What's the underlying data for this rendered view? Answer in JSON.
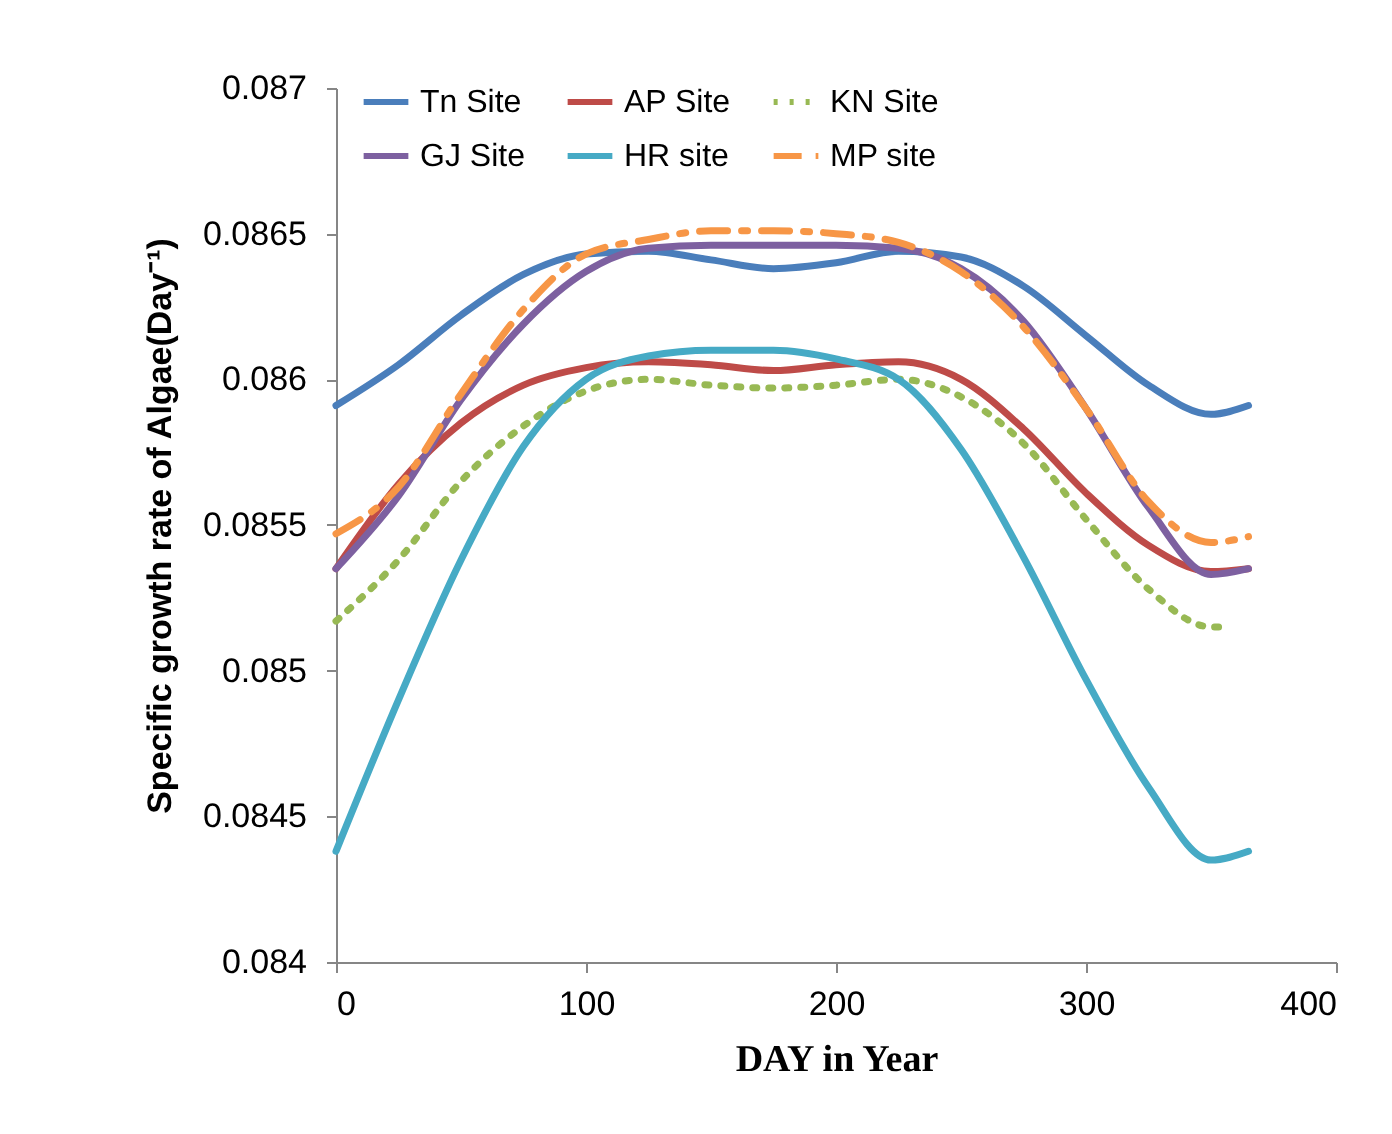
{
  "chart_data": {
    "type": "line",
    "xlabel": "DAY  in Year",
    "ylabel": "Specific growth rate of Algae(Day⁻¹)",
    "x": [
      0,
      25,
      50,
      75,
      100,
      125,
      150,
      175,
      200,
      225,
      250,
      275,
      300,
      325,
      350,
      365
    ],
    "xlim": [
      0,
      400
    ],
    "xticks": [
      0,
      100,
      200,
      300,
      400
    ],
    "ylim": [
      0.084,
      0.087
    ],
    "yticks": [
      0.084,
      0.0845,
      0.085,
      0.0855,
      0.086,
      0.0865,
      0.087
    ],
    "legend": "top",
    "grid": false,
    "marker": "none",
    "series": [
      {
        "name": "Tn Site",
        "color": "#4a7ebb",
        "line_style": "solid",
        "values": [
          0.08591,
          0.08605,
          0.08622,
          0.08636,
          0.08643,
          0.08644,
          0.08641,
          0.08638,
          0.0864,
          0.08644,
          0.08642,
          0.08632,
          0.08615,
          0.08598,
          0.08588,
          0.08591
        ]
      },
      {
        "name": "AP Site",
        "color": "#be4b48",
        "line_style": "solid",
        "values": [
          0.08535,
          0.08564,
          0.08585,
          0.08598,
          0.08604,
          0.08606,
          0.08605,
          0.08603,
          0.08605,
          0.08606,
          0.086,
          0.08583,
          0.08561,
          0.08543,
          0.08534,
          0.08535
        ]
      },
      {
        "name": "KN Site",
        "color": "#98b954",
        "line_style": "dotted",
        "x": [
          0,
          25,
          50,
          75,
          100,
          125,
          150,
          175,
          200,
          225,
          250,
          275,
          300,
          325,
          350,
          356
        ],
        "values": [
          0.08517,
          0.08538,
          0.08565,
          0.08584,
          0.08596,
          0.086,
          0.08598,
          0.08597,
          0.08598,
          0.086,
          0.08594,
          0.08578,
          0.08552,
          0.08528,
          0.08515,
          0.08515
        ]
      },
      {
        "name": "GJ Site",
        "color": "#7d60a0",
        "line_style": "solid",
        "values": [
          0.08535,
          0.0856,
          0.08593,
          0.08619,
          0.08637,
          0.08645,
          0.08646,
          0.08646,
          0.08646,
          0.08645,
          0.08638,
          0.0862,
          0.0859,
          0.08556,
          0.08533,
          0.08535
        ]
      },
      {
        "name": "HR site",
        "color": "#46aac5",
        "line_style": "solid",
        "values": [
          0.08438,
          0.0849,
          0.08538,
          0.08577,
          0.086,
          0.08608,
          0.0861,
          0.0861,
          0.08607,
          0.086,
          0.08576,
          0.08539,
          0.08497,
          0.0846,
          0.08435,
          0.08438
        ]
      },
      {
        "name": "MP site",
        "color": "#f79646",
        "line_style": "dashed",
        "values": [
          0.08547,
          0.08563,
          0.08595,
          0.08624,
          0.08643,
          0.08648,
          0.08651,
          0.08651,
          0.0865,
          0.08647,
          0.08637,
          0.08618,
          0.0859,
          0.08558,
          0.08544,
          0.08546
        ]
      }
    ]
  }
}
